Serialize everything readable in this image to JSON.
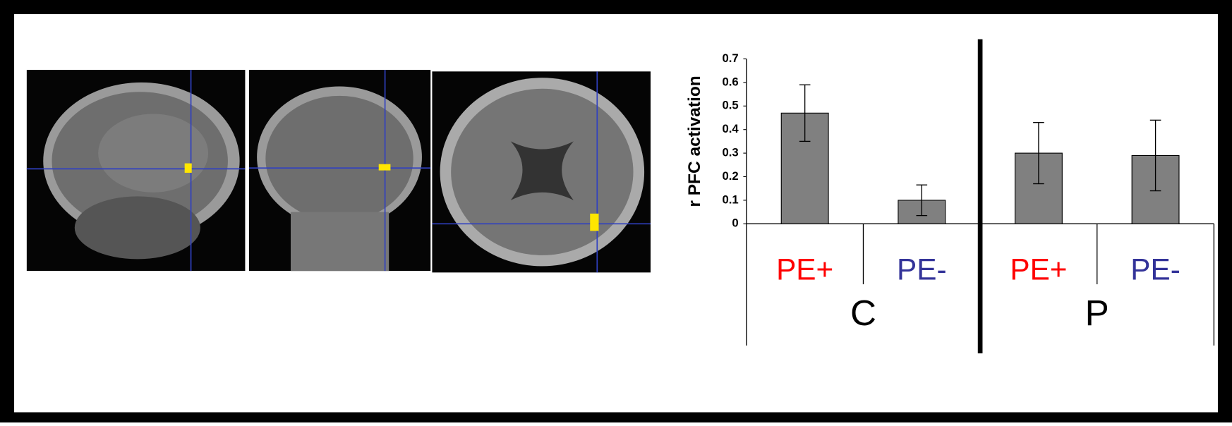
{
  "chart_data": {
    "type": "bar",
    "y_label": "r PFC activation",
    "categories": [
      "PE+",
      "PE-",
      "PE+",
      "PE-"
    ],
    "category_colors": [
      "#ff0000",
      "#333399",
      "#ff0000",
      "#333399"
    ],
    "groups": [
      "C",
      "P"
    ],
    "values": [
      0.47,
      0.1,
      0.3,
      0.29
    ],
    "errors": [
      0.12,
      0.065,
      0.13,
      0.15
    ],
    "color": "#808080",
    "ylim": [
      0,
      0.7
    ],
    "yticks": [
      0,
      0.1,
      0.2,
      0.3,
      0.4,
      0.5,
      0.6,
      0.7
    ]
  }
}
